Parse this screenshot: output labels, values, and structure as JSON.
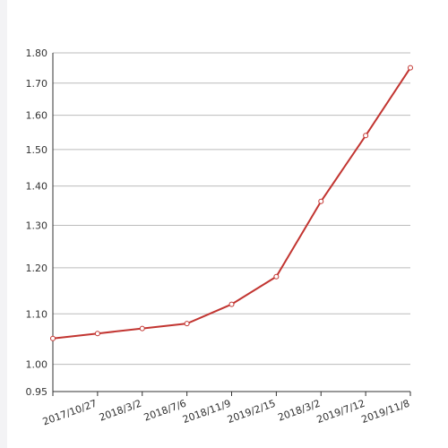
{
  "chart_data": {
    "type": "line",
    "log_scale": true,
    "grid": true,
    "categories": [
      null,
      "2017/10/27",
      "2018/3/2",
      "2018/7/6",
      "2018/11/9",
      "2019/2/15",
      "2018/3/2",
      "2019/7/12",
      "2019/11/8"
    ],
    "series": [
      {
        "name": null,
        "color": "#c23531",
        "values": [
          1.05,
          1.06,
          1.07,
          1.08,
          1.12,
          1.18,
          1.36,
          1.54,
          1.75
        ]
      }
    ],
    "ylim": [
      0.95,
      1.8
    ],
    "yticks": [
      0.95,
      {
        "value": 1,
        "label": "1.00"
      },
      {
        "value": 1.1,
        "label": "1.10"
      },
      {
        "value": 1.2,
        "label": "1.20"
      },
      {
        "value": 1.3,
        "label": "1.30"
      },
      {
        "value": 1.4,
        "label": "1.40"
      },
      {
        "value": 1.5,
        "label": "1.50"
      },
      {
        "value": 1.6,
        "label": "1.60"
      },
      {
        "value": 1.7,
        "label": "1.70"
      },
      {
        "value": 1.8,
        "label": "1.80"
      }
    ]
  }
}
